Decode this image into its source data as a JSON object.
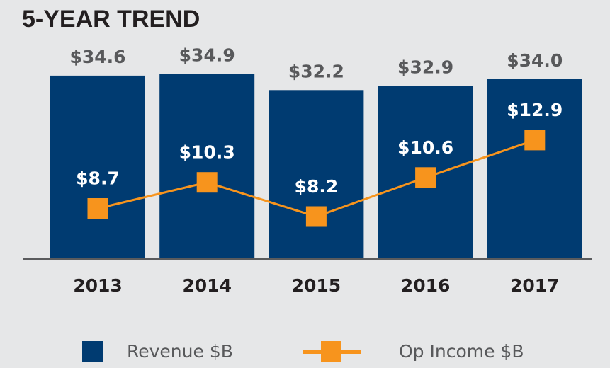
{
  "title": "5-YEAR TREND",
  "colors": {
    "revenue": "#003b71",
    "op_income": "#f7941d",
    "background": "#e6e7e8",
    "axis": "#5a5b5d",
    "revenue_label": "#58595b",
    "op_label": "#ffffff",
    "year_label": "#231f20"
  },
  "chart_data": {
    "type": "bar",
    "title": "5-YEAR TREND",
    "categories": [
      "2013",
      "2014",
      "2015",
      "2016",
      "2017"
    ],
    "series": [
      {
        "name": "Revenue $B",
        "type": "bar",
        "values": [
          34.6,
          34.9,
          32.2,
          32.9,
          34.0
        ],
        "labels": [
          "$34.6",
          "$34.9",
          "$32.2",
          "$32.9",
          "$34.0"
        ]
      },
      {
        "name": "Op Income $B",
        "type": "line",
        "marker": "square",
        "values": [
          8.7,
          10.3,
          8.2,
          10.6,
          12.9
        ],
        "labels": [
          "$8.7",
          "$10.3",
          "$8.2",
          "$10.6",
          "$12.9"
        ]
      }
    ],
    "xlabel": "",
    "ylabel": "",
    "grid": false,
    "legend": "bottom"
  },
  "legend": {
    "revenue": "Revenue $B",
    "op_income": "Op Income $B"
  }
}
